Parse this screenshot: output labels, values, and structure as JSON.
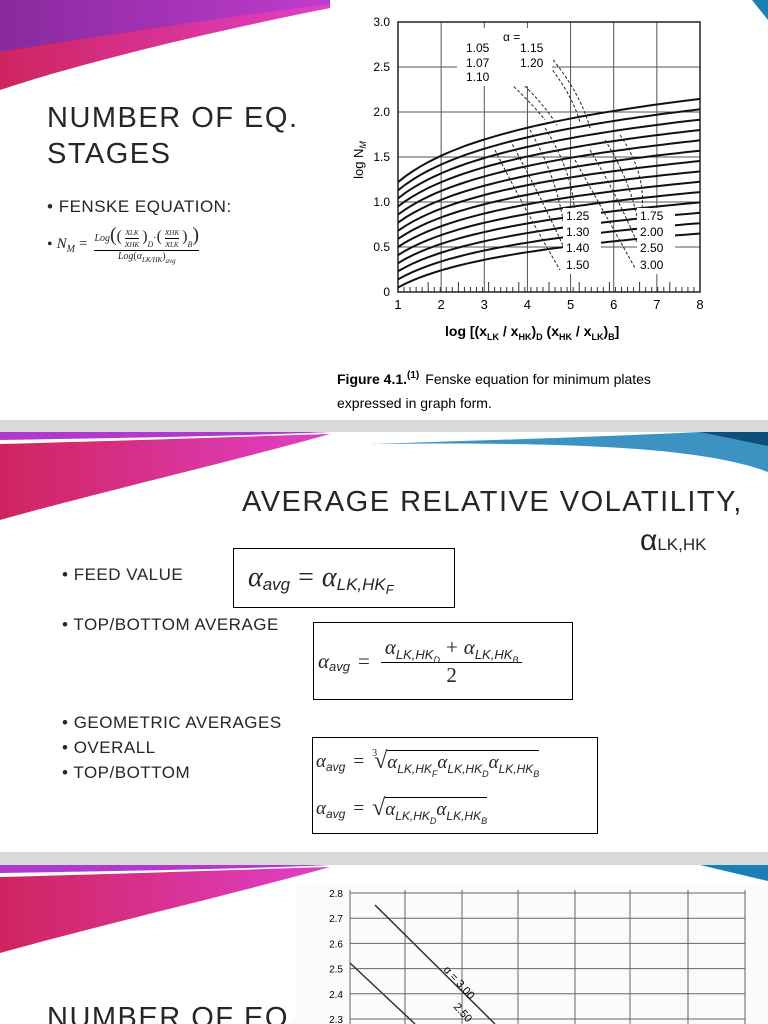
{
  "slide1": {
    "title": [
      "NUMBER OF EQ.",
      "STAGES"
    ],
    "bullets": [
      "FENSKE EQUATION:"
    ],
    "fenske": {
      "symbol": "N",
      "symbol_sub": "M",
      "equals": "=",
      "log": "Log",
      "frac1_num": "x",
      "frac1_num_sub": "LK",
      "frac1_den": "x",
      "frac1_den_sub": "HK",
      "frac1_sub": "D",
      "dot": "·",
      "frac2_num": "x",
      "frac2_num_sub": "HK",
      "frac2_den": "x",
      "frac2_den_sub": "LK",
      "frac2_sub": "B",
      "den_log": "Log",
      "den_alpha": "α",
      "den_alpha_sub": "LK/HK",
      "den_sub": "avg"
    },
    "figure": {
      "y_ticks": [
        "0",
        "0.5",
        "1.0",
        "1.5",
        "2.0",
        "2.5",
        "3.0"
      ],
      "x_ticks": [
        "1",
        "2",
        "3",
        "4",
        "5",
        "6",
        "7",
        "8"
      ],
      "y_label": "log N",
      "y_label_sub": "M",
      "x_label": [
        "log [(x",
        "LK",
        " / x",
        "HK",
        ")",
        "D",
        " (x",
        "HK",
        " / x",
        "LK",
        ")",
        "B",
        "]"
      ],
      "alpha_header": "α =",
      "alpha_labels_top": [
        "1.05",
        "1.07",
        "1.10",
        "1.15",
        "1.20"
      ],
      "alpha_labels_bottom": [
        "1.25",
        "1.30",
        "1.40",
        "1.50",
        "1.75",
        "2.00",
        "2.50",
        "3.00"
      ],
      "caption_label": "Figure 4.1.",
      "caption_ref": "(1)",
      "caption_lines": [
        "Fenske equation for minimum plates",
        "expressed in graph form."
      ]
    }
  },
  "slide2": {
    "title": "AVERAGE RELATIVE VOLATILITY,",
    "subtitle": {
      "symbol": "α",
      "sub": "LK,HK"
    },
    "bullets": [
      "FEED VALUE",
      "TOP/BOTTOM AVERAGE",
      "GEOMETRIC AVERAGES",
      "OVERALL",
      "TOP/BOTTOM"
    ],
    "formula_feed": {
      "lhs": {
        "a": "α",
        "sub": "avg"
      },
      "equals": "=",
      "terms": [
        {
          "a": "α",
          "sub": "LK,HK",
          "subsub": "F"
        }
      ]
    },
    "formula_top_bottom": {
      "lhs": {
        "a": "α",
        "sub": "avg"
      },
      "equals": "=",
      "numerator": [
        {
          "a": "α",
          "sub": "LK,HK",
          "subsub": "D"
        },
        {
          "a": "α",
          "sub": "LK,HK",
          "subsub": "B"
        }
      ],
      "plus": "+",
      "denominator": "2"
    },
    "formula_overall": {
      "lhs": {
        "a": "α",
        "sub": "avg"
      },
      "equals": "=",
      "root_index": "3",
      "radical": "√",
      "terms": [
        {
          "a": "α",
          "sub": "LK,HK",
          "subsub": "F"
        },
        {
          "a": "α",
          "sub": "LK,HK",
          "subsub": "D"
        },
        {
          "a": "α",
          "sub": "LK,HK",
          "subsub": "B"
        }
      ]
    },
    "formula_geo_top_bottom": {
      "lhs": {
        "a": "α",
        "sub": "avg"
      },
      "equals": "=",
      "radical": "√",
      "terms": [
        {
          "a": "α",
          "sub": "LK,HK",
          "subsub": "D"
        },
        {
          "a": "α",
          "sub": "LK,HK",
          "subsub": "B"
        }
      ]
    }
  },
  "slide3": {
    "title": "NUMBER OF EQ.",
    "figure": {
      "y_ticks": [
        "2.8",
        "2.7",
        "2.6",
        "2.5",
        "2.4",
        "2.3"
      ],
      "curve_labels": [
        "α = 3.00",
        "2.50"
      ]
    }
  }
}
